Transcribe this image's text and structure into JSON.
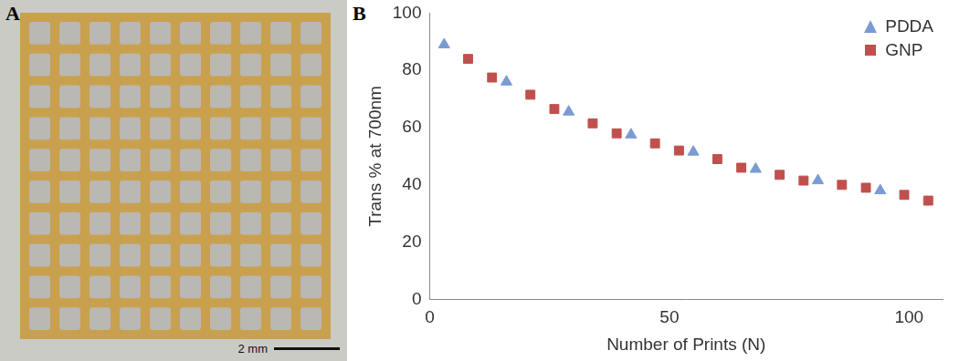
{
  "panel_a": {
    "label": "A",
    "scale_bar": "2 mm"
  },
  "chart_data": {
    "type": "scatter",
    "panel_label": "B",
    "x_label": "Number of Prints (N)",
    "y_label": "Trans % at 700nm",
    "series": [
      {
        "name": "PDDA",
        "color": "#7b9bd2",
        "marker": "triangle",
        "x": [
          3,
          16,
          29,
          42,
          55,
          68,
          81,
          94
        ],
        "values": [
          89,
          76,
          65.5,
          57.5,
          51.5,
          45.5,
          41.5,
          38
        ]
      },
      {
        "name": "GNP",
        "color": "#c0504d",
        "marker": "square",
        "x": [
          8,
          13,
          21,
          26,
          34,
          39,
          47,
          52,
          60,
          65,
          73,
          78,
          86,
          91,
          99,
          104
        ],
        "values": [
          84,
          77.5,
          71.5,
          66.5,
          61.5,
          58,
          54.5,
          52,
          49,
          46,
          43.5,
          41.5,
          40,
          39,
          36.5,
          34.5
        ]
      }
    ],
    "xlim": [
      0,
      107
    ],
    "xticks": [
      0,
      50,
      100
    ],
    "ylim": [
      0,
      100
    ],
    "yticks": [
      0,
      20,
      40,
      60,
      80,
      100
    ],
    "grid": false,
    "legend": "upper right"
  }
}
